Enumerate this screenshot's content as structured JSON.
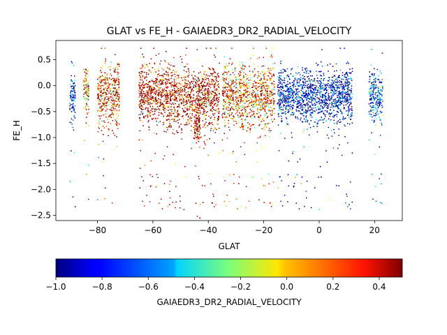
{
  "chart_data": {
    "type": "scatter",
    "title": "GLAT vs FE_H - GAIAEDR3_DR2_RADIAL_VELOCITY",
    "xlabel": "GLAT",
    "ylabel": "FE_H",
    "xlim": [
      -95,
      30
    ],
    "ylim": [
      -2.6,
      0.87
    ],
    "x_ticks": [
      -80,
      -60,
      -40,
      -20,
      0,
      20
    ],
    "x_tick_labels": [
      "−80",
      "−60",
      "−40",
      "−20",
      "0",
      "20"
    ],
    "y_ticks": [
      0.5,
      0.0,
      -0.5,
      -1.0,
      -1.5,
      -2.0,
      -2.5
    ],
    "y_tick_labels": [
      "0.5",
      "0.0",
      "−0.5",
      "−1.0",
      "−1.5",
      "−2.0",
      "−2.5"
    ],
    "grid": false,
    "colorbar": {
      "label": "GAIAEDR3_DR2_RADIAL_VELOCITY",
      "colormap": "jet",
      "range": [
        -1.0,
        0.5
      ],
      "ticks": [
        -1.0,
        -0.8,
        -0.6,
        -0.4,
        -0.2,
        0.0,
        0.2,
        0.4
      ],
      "tick_labels": [
        "−1.0",
        "−0.8",
        "−0.6",
        "−0.4",
        "−0.2",
        "0.0",
        "0.2",
        "0.4"
      ],
      "placement": "bottom"
    },
    "clusters": [
      {
        "glat_range": [
          -90,
          -88
        ],
        "feh_center": -0.2,
        "feh_spread": 0.25,
        "color_value": -0.8
      },
      {
        "glat_range": [
          -85,
          -83
        ],
        "feh_center": -0.1,
        "feh_spread": 0.2,
        "color_value": 0.1
      },
      {
        "glat_range": [
          -80,
          -72
        ],
        "feh_center": -0.2,
        "feh_spread": 0.3,
        "color_value": 0.3
      },
      {
        "glat_range": [
          -65,
          -36
        ],
        "feh_center": -0.2,
        "feh_spread": 0.3,
        "color_value": 0.45
      },
      {
        "glat_range": [
          -45,
          -43
        ],
        "feh_center": -0.75,
        "feh_spread": 0.2,
        "color_value": 0.5
      },
      {
        "glat_range": [
          -35,
          -16
        ],
        "feh_center": -0.2,
        "feh_spread": 0.3,
        "color_value": 0.2
      },
      {
        "glat_range": [
          -15,
          12
        ],
        "feh_center": -0.2,
        "feh_spread": 0.25,
        "color_value": -0.9
      },
      {
        "glat_range": [
          18,
          23
        ],
        "feh_center": -0.2,
        "feh_spread": 0.25,
        "color_value": -0.7
      }
    ]
  }
}
